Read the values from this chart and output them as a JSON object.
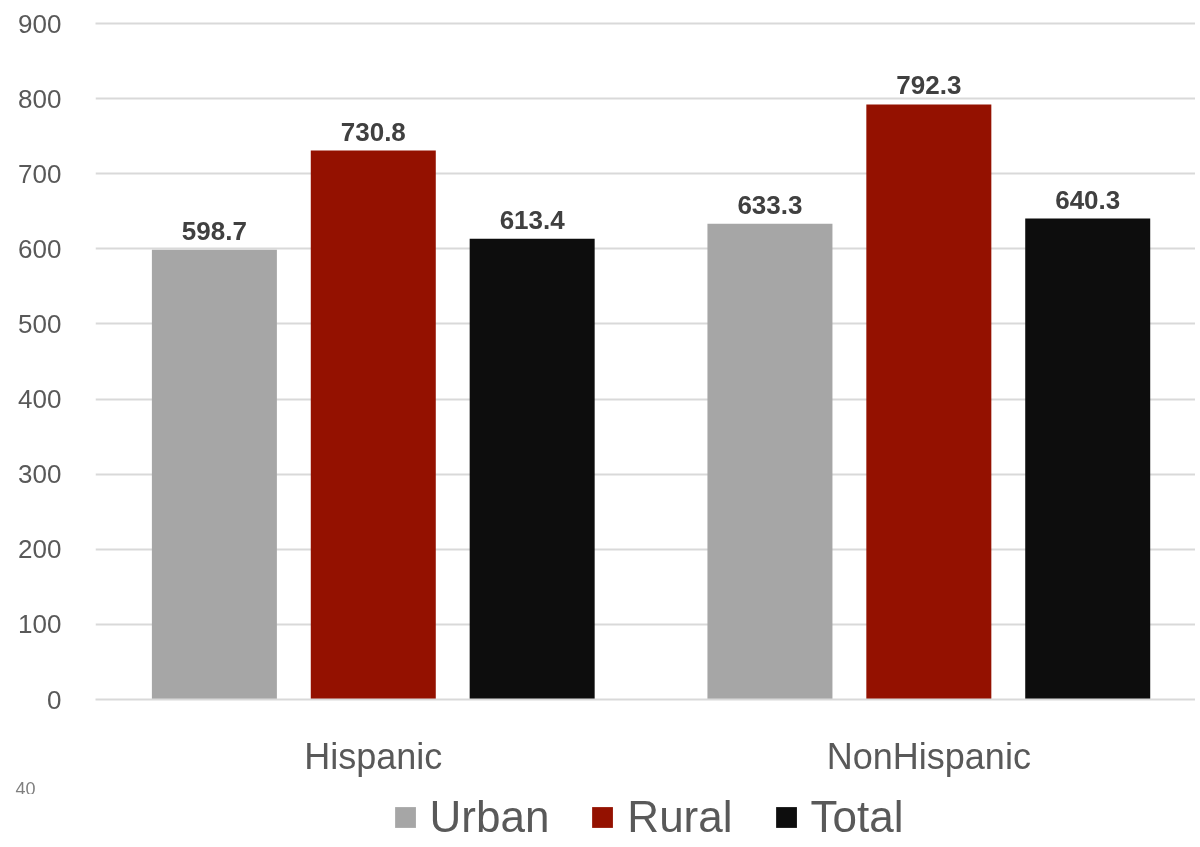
{
  "chart_data": {
    "type": "bar",
    "categories": [
      "Hispanic",
      "NonHispanic"
    ],
    "series": [
      {
        "name": "Urban",
        "color": "#a6a6a6",
        "values": [
          598.7,
          633.3
        ]
      },
      {
        "name": "Rural",
        "color": "#941100",
        "values": [
          730.8,
          792.3
        ]
      },
      {
        "name": "Total",
        "color": "#0d0d0d",
        "values": [
          613.4,
          640.3
        ]
      }
    ],
    "ylim": [
      0,
      900
    ],
    "yticks": [
      0,
      100,
      200,
      300,
      400,
      500,
      600,
      700,
      800,
      900
    ],
    "grid": "y",
    "legend": "bottom",
    "data_labels": true,
    "annotations": [
      "40"
    ]
  }
}
